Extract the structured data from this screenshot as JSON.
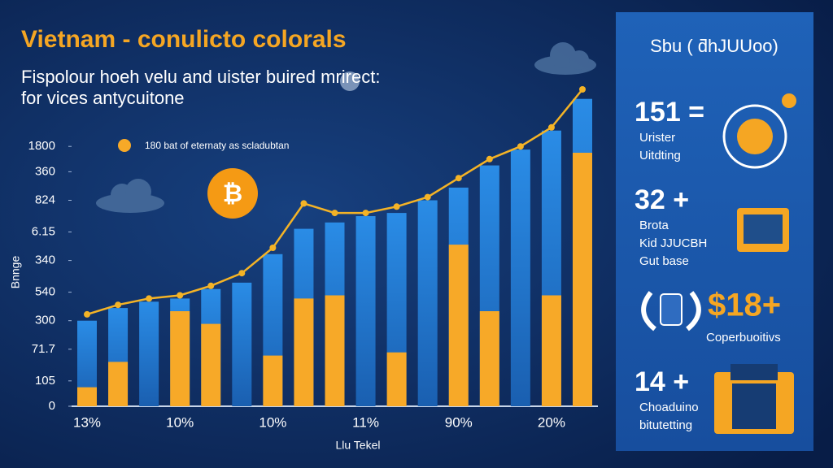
{
  "chart_data": {
    "type": "bar",
    "title": "Vietnam - conulicto colorals",
    "subtitle": [
      "Fispolour hoeh velu and uister buired mrirect:",
      "for vices antycuitone"
    ],
    "y_label": "Bnnge",
    "x_label": "Llu Tekel",
    "legend_label": "180 bat of eternaty as scladubtan",
    "categories": [
      "13%",
      null,
      null,
      "10%",
      null,
      null,
      "10%",
      null,
      null,
      "11%",
      null,
      null,
      "90%",
      null,
      null,
      "20%",
      null
    ],
    "series": [
      {
        "color": "#1f80d9",
        "values": [
          27,
          31,
          33,
          34,
          37,
          39,
          48,
          56,
          58,
          60,
          61,
          65,
          69,
          76,
          81,
          87,
          97
        ]
      },
      {
        "color": "#f7a928",
        "values": [
          6,
          14,
          null,
          30,
          26,
          null,
          16,
          34,
          35,
          null,
          17,
          null,
          51,
          30,
          null,
          35,
          80
        ]
      },
      {
        "color": "#f4b326",
        "line": true,
        "values": [
          29,
          32,
          34,
          35,
          38,
          42,
          50,
          64,
          61,
          61,
          63,
          66,
          72,
          78,
          82,
          88,
          100
        ]
      }
    ],
    "ylim": [
      0,
      100
    ],
    "yticks": [
      0,
      {
        "value": 8,
        "label": "105"
      },
      {
        "value": 18,
        "label": "71.7"
      },
      {
        "value": 27,
        "label": "300"
      },
      {
        "value": 36,
        "label": "540"
      },
      {
        "value": 46,
        "label": "340"
      },
      {
        "value": 55,
        "label": "6.15"
      },
      {
        "value": 65,
        "label": "824"
      },
      {
        "value": 74,
        "label": "360"
      },
      {
        "value": 82,
        "label": "1800"
      }
    ]
  },
  "panel": {
    "title": "Sbu ( ƌhJUUoo)",
    "items": [
      {
        "value": "151 =",
        "lines": [
          "Urister",
          "Uitdting"
        ]
      },
      {
        "value": "32 +",
        "lines": [
          "Brota",
          "Kid JJUCBH",
          "Gut base"
        ]
      },
      {
        "value": "$18+",
        "lines": [
          "Coperbuoitivs"
        ]
      },
      {
        "value": "14 +",
        "lines": [
          "Choaduino",
          "bitutetting"
        ]
      }
    ]
  }
}
